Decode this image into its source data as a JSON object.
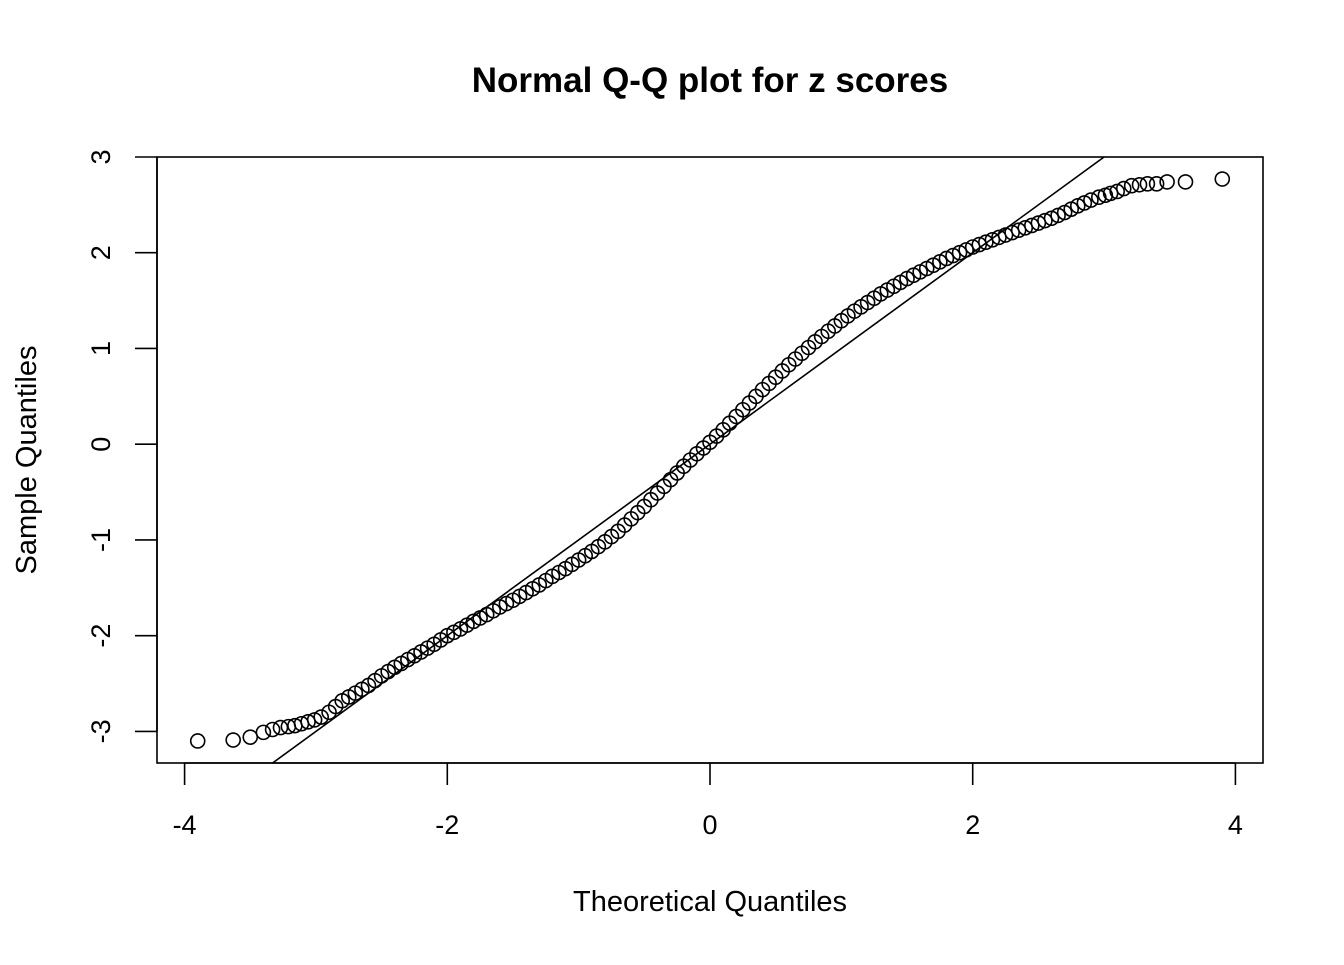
{
  "chart_data": {
    "type": "scatter",
    "title": "Normal Q-Q plot for z scores",
    "x_label": "Theoretical Quantiles",
    "y_label": "Sample Quantiles",
    "xlim": [
      -4.21,
      4.21
    ],
    "ylim": [
      -3.33,
      3.0
    ],
    "xticks": [
      -4,
      -2,
      0,
      2,
      4
    ],
    "yticks": [
      -3,
      -2,
      -1,
      0,
      1,
      2,
      3
    ],
    "color": "#000000",
    "reference_line": {
      "intercept": 0,
      "slope": 1
    },
    "x": [
      -3.9,
      -3.63,
      -3.5,
      -3.4,
      -3.33,
      -3.27,
      -3.21,
      -3.16,
      -3.11,
      -3.06,
      -3.01,
      -2.96,
      -2.9,
      -2.85,
      -2.8,
      -2.75,
      -2.7,
      -2.65,
      -2.6,
      -2.55,
      -2.5,
      -2.45,
      -2.4,
      -2.35,
      -2.3,
      -2.25,
      -2.2,
      -2.15,
      -2.1,
      -2.05,
      -2.0,
      -1.95,
      -1.9,
      -1.85,
      -1.8,
      -1.75,
      -1.7,
      -1.65,
      -1.6,
      -1.55,
      -1.5,
      -1.45,
      -1.4,
      -1.35,
      -1.3,
      -1.25,
      -1.2,
      -1.15,
      -1.1,
      -1.05,
      -1.0,
      -0.95,
      -0.9,
      -0.85,
      -0.8,
      -0.75,
      -0.7,
      -0.65,
      -0.6,
      -0.55,
      -0.5,
      -0.45,
      -0.4,
      -0.35,
      -0.3,
      -0.25,
      -0.2,
      -0.15,
      -0.1,
      -0.05,
      0,
      0.05,
      0.1,
      0.15,
      0.2,
      0.25,
      0.3,
      0.35,
      0.4,
      0.45,
      0.5,
      0.55,
      0.6,
      0.65,
      0.7,
      0.75,
      0.8,
      0.85,
      0.9,
      0.95,
      1.0,
      1.05,
      1.1,
      1.15,
      1.2,
      1.25,
      1.3,
      1.35,
      1.4,
      1.45,
      1.5,
      1.55,
      1.6,
      1.65,
      1.7,
      1.75,
      1.8,
      1.85,
      1.9,
      1.95,
      2.0,
      2.05,
      2.1,
      2.15,
      2.2,
      2.25,
      2.3,
      2.35,
      2.4,
      2.45,
      2.5,
      2.55,
      2.6,
      2.65,
      2.7,
      2.75,
      2.8,
      2.85,
      2.9,
      2.96,
      3.01,
      3.05,
      3.1,
      3.15,
      3.21,
      3.27,
      3.33,
      3.4,
      3.48,
      3.62,
      3.9
    ],
    "values": [
      -3.1,
      -3.09,
      -3.06,
      -3.01,
      -2.98,
      -2.96,
      -2.95,
      -2.94,
      -2.92,
      -2.9,
      -2.88,
      -2.85,
      -2.8,
      -2.74,
      -2.68,
      -2.64,
      -2.6,
      -2.56,
      -2.52,
      -2.47,
      -2.42,
      -2.375,
      -2.33,
      -2.29,
      -2.25,
      -2.21,
      -2.17,
      -2.13,
      -2.09,
      -2.045,
      -2.0,
      -1.965,
      -1.93,
      -1.89,
      -1.85,
      -1.815,
      -1.78,
      -1.74,
      -1.7,
      -1.665,
      -1.63,
      -1.59,
      -1.55,
      -1.51,
      -1.47,
      -1.425,
      -1.38,
      -1.34,
      -1.3,
      -1.255,
      -1.21,
      -1.165,
      -1.12,
      -1.07,
      -1.02,
      -0.965,
      -0.91,
      -0.845,
      -0.78,
      -0.715,
      -0.65,
      -0.58,
      -0.51,
      -0.44,
      -0.37,
      -0.3,
      -0.23,
      -0.165,
      -0.1,
      -0.04,
      0.02,
      0.085,
      0.15,
      0.22,
      0.29,
      0.36,
      0.43,
      0.5,
      0.57,
      0.635,
      0.7,
      0.765,
      0.83,
      0.89,
      0.95,
      1.01,
      1.07,
      1.125,
      1.18,
      1.235,
      1.29,
      1.34,
      1.39,
      1.435,
      1.48,
      1.525,
      1.57,
      1.61,
      1.65,
      1.69,
      1.73,
      1.765,
      1.8,
      1.835,
      1.87,
      1.905,
      1.94,
      1.97,
      2.0,
      2.03,
      2.06,
      2.085,
      2.11,
      2.135,
      2.16,
      2.185,
      2.21,
      2.235,
      2.26,
      2.285,
      2.31,
      2.335,
      2.36,
      2.39,
      2.42,
      2.455,
      2.49,
      2.52,
      2.55,
      2.58,
      2.6,
      2.62,
      2.64,
      2.67,
      2.7,
      2.71,
      2.72,
      2.72,
      2.74,
      2.74,
      2.77
    ]
  }
}
